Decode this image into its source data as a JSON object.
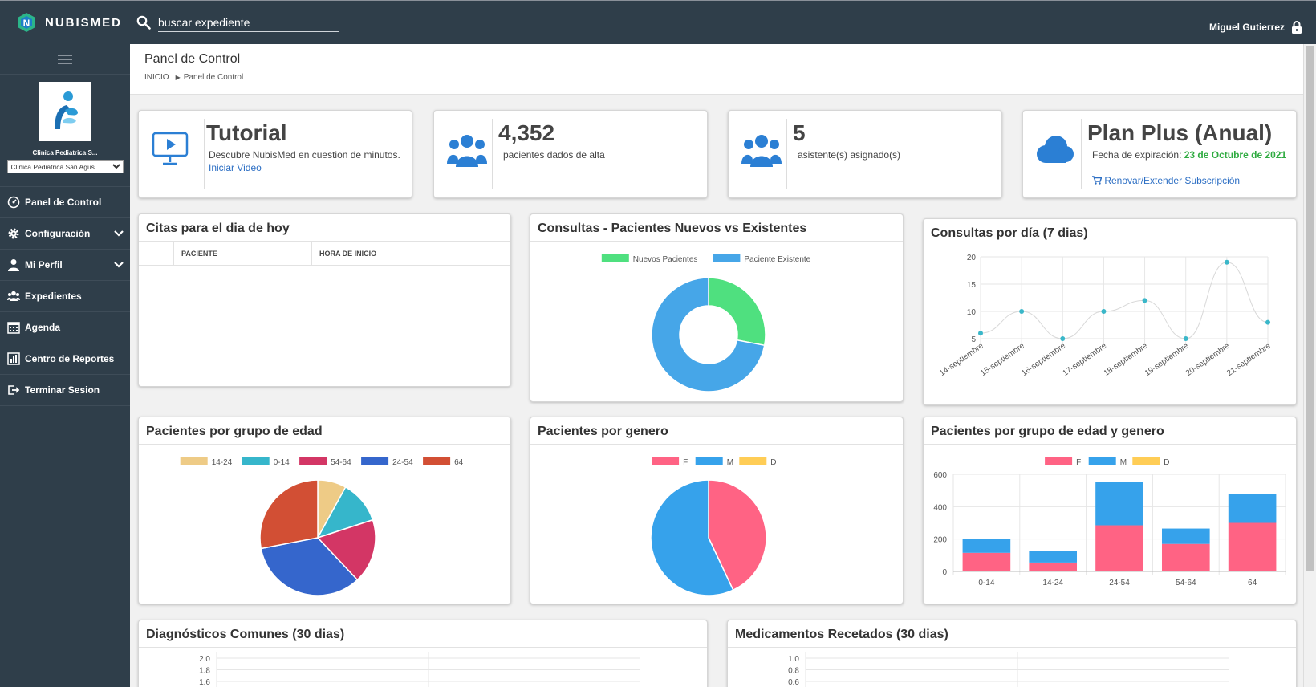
{
  "app": {
    "name": "NUBISMED"
  },
  "search": {
    "placeholder": "buscar expediente"
  },
  "user": {
    "name": "Miguel Gutierrez"
  },
  "sidebar": {
    "clinic_name": "Clinica Pediatrica S...",
    "clinic_select": "Clinica Pediatrica San Agus",
    "items": [
      {
        "label": "Panel de Control",
        "icon": "dashboard-icon"
      },
      {
        "label": "Configuración",
        "icon": "gear-icon",
        "expandable": true
      },
      {
        "label": "Mi Perfil",
        "icon": "user-icon",
        "expandable": true
      },
      {
        "label": "Expedientes",
        "icon": "users-icon"
      },
      {
        "label": "Agenda",
        "icon": "calendar-icon"
      },
      {
        "label": "Centro de Reportes",
        "icon": "report-icon"
      },
      {
        "label": "Terminar Sesion",
        "icon": "logout-icon"
      }
    ]
  },
  "header": {
    "title": "Panel de Control",
    "breadcrumb": [
      "INICIO",
      "Panel de Control"
    ]
  },
  "stats": {
    "tutorial": {
      "title": "Tutorial",
      "text": "Descubre NubisMed en cuestion de minutos.",
      "link": "Iniciar Video"
    },
    "patients": {
      "title": "4,352",
      "text": "pacientes dados de alta"
    },
    "assistants": {
      "title": "5",
      "text": "asistente(s) asignado(s)"
    },
    "plan": {
      "title": "Plan Plus (Anual)",
      "expiry_label": "Fecha de expiración:",
      "expiry_date": "23 de Octubre de 2021",
      "renew_link": "Renovar/Extender Subscripción"
    }
  },
  "panels": {
    "citas": {
      "title": "Citas para el dia de hoy",
      "columns": [
        "PACIENTE",
        "HORA DE INICIO"
      ]
    },
    "consultas_nuevos": {
      "title": "Consultas - Pacientes Nuevos vs Existentes"
    },
    "consultas_dia": {
      "title": "Consultas por día (7 dias)"
    },
    "edad": {
      "title": "Pacientes por grupo de edad"
    },
    "genero": {
      "title": "Pacientes por genero"
    },
    "edad_genero": {
      "title": "Pacientes por grupo de edad y genero"
    },
    "diagnosticos": {
      "title": "Diagnósticos Comunes (30 dias)"
    },
    "medicamentos": {
      "title": "Medicamentos Recetados (30 dias)"
    }
  },
  "colors": {
    "topbar": "#2f3e4a",
    "accent": "#3a8ee6",
    "green": "#2fab41"
  },
  "chart_data": [
    {
      "type": "pie",
      "variant": "doughnut",
      "categories": [
        "Nuevos Pacientes",
        "Paciente Existente"
      ],
      "values": [
        28,
        72
      ],
      "colors": [
        "#4fe07f",
        "#46a6e8"
      ],
      "legend": "top"
    },
    {
      "type": "line",
      "x": [
        "14-septiembre",
        "15-septiembre",
        "16-septiembre",
        "17-septiembre",
        "18-septiembre",
        "19-septiembre",
        "20-septiembre",
        "21-septiembre"
      ],
      "values": [
        6,
        10,
        5,
        10,
        12,
        5,
        19,
        8
      ],
      "ylim": [
        5,
        20
      ],
      "yticks": [
        5,
        10,
        15,
        20
      ],
      "grid": true,
      "color": "#3ab7c9"
    },
    {
      "type": "pie",
      "categories": [
        "14-24",
        "0-14",
        "54-64",
        "24-54",
        "64"
      ],
      "values": [
        8,
        12,
        18,
        34,
        28
      ],
      "colors": [
        "#eecb86",
        "#36b6cb",
        "#d33665",
        "#3566cc",
        "#d24f34"
      ],
      "legend": "top"
    },
    {
      "type": "pie",
      "categories": [
        "F",
        "M",
        "D"
      ],
      "values": [
        43,
        57,
        0
      ],
      "colors": [
        "#ff6384",
        "#36a2eb",
        "#ffcd56"
      ],
      "legend": "top"
    },
    {
      "type": "bar",
      "stacked": true,
      "categories": [
        "0-14",
        "14-24",
        "24-54",
        "54-64",
        "64"
      ],
      "series": [
        {
          "name": "F",
          "values": [
            115,
            55,
            285,
            170,
            300
          ],
          "color": "#ff6384"
        },
        {
          "name": "M",
          "values": [
            85,
            70,
            270,
            95,
            180
          ],
          "color": "#36a2eb"
        },
        {
          "name": "D",
          "values": [
            0,
            0,
            0,
            0,
            0
          ],
          "color": "#ffcd56"
        }
      ],
      "ylim": [
        0,
        600
      ],
      "yticks": [
        0,
        200,
        400,
        600
      ],
      "legend": "top"
    },
    {
      "type": "bar",
      "yticks": [
        "2.0",
        "1.8",
        "1.6"
      ]
    },
    {
      "type": "bar",
      "yticks": [
        "1.0",
        "0.8",
        "0.6"
      ]
    }
  ]
}
